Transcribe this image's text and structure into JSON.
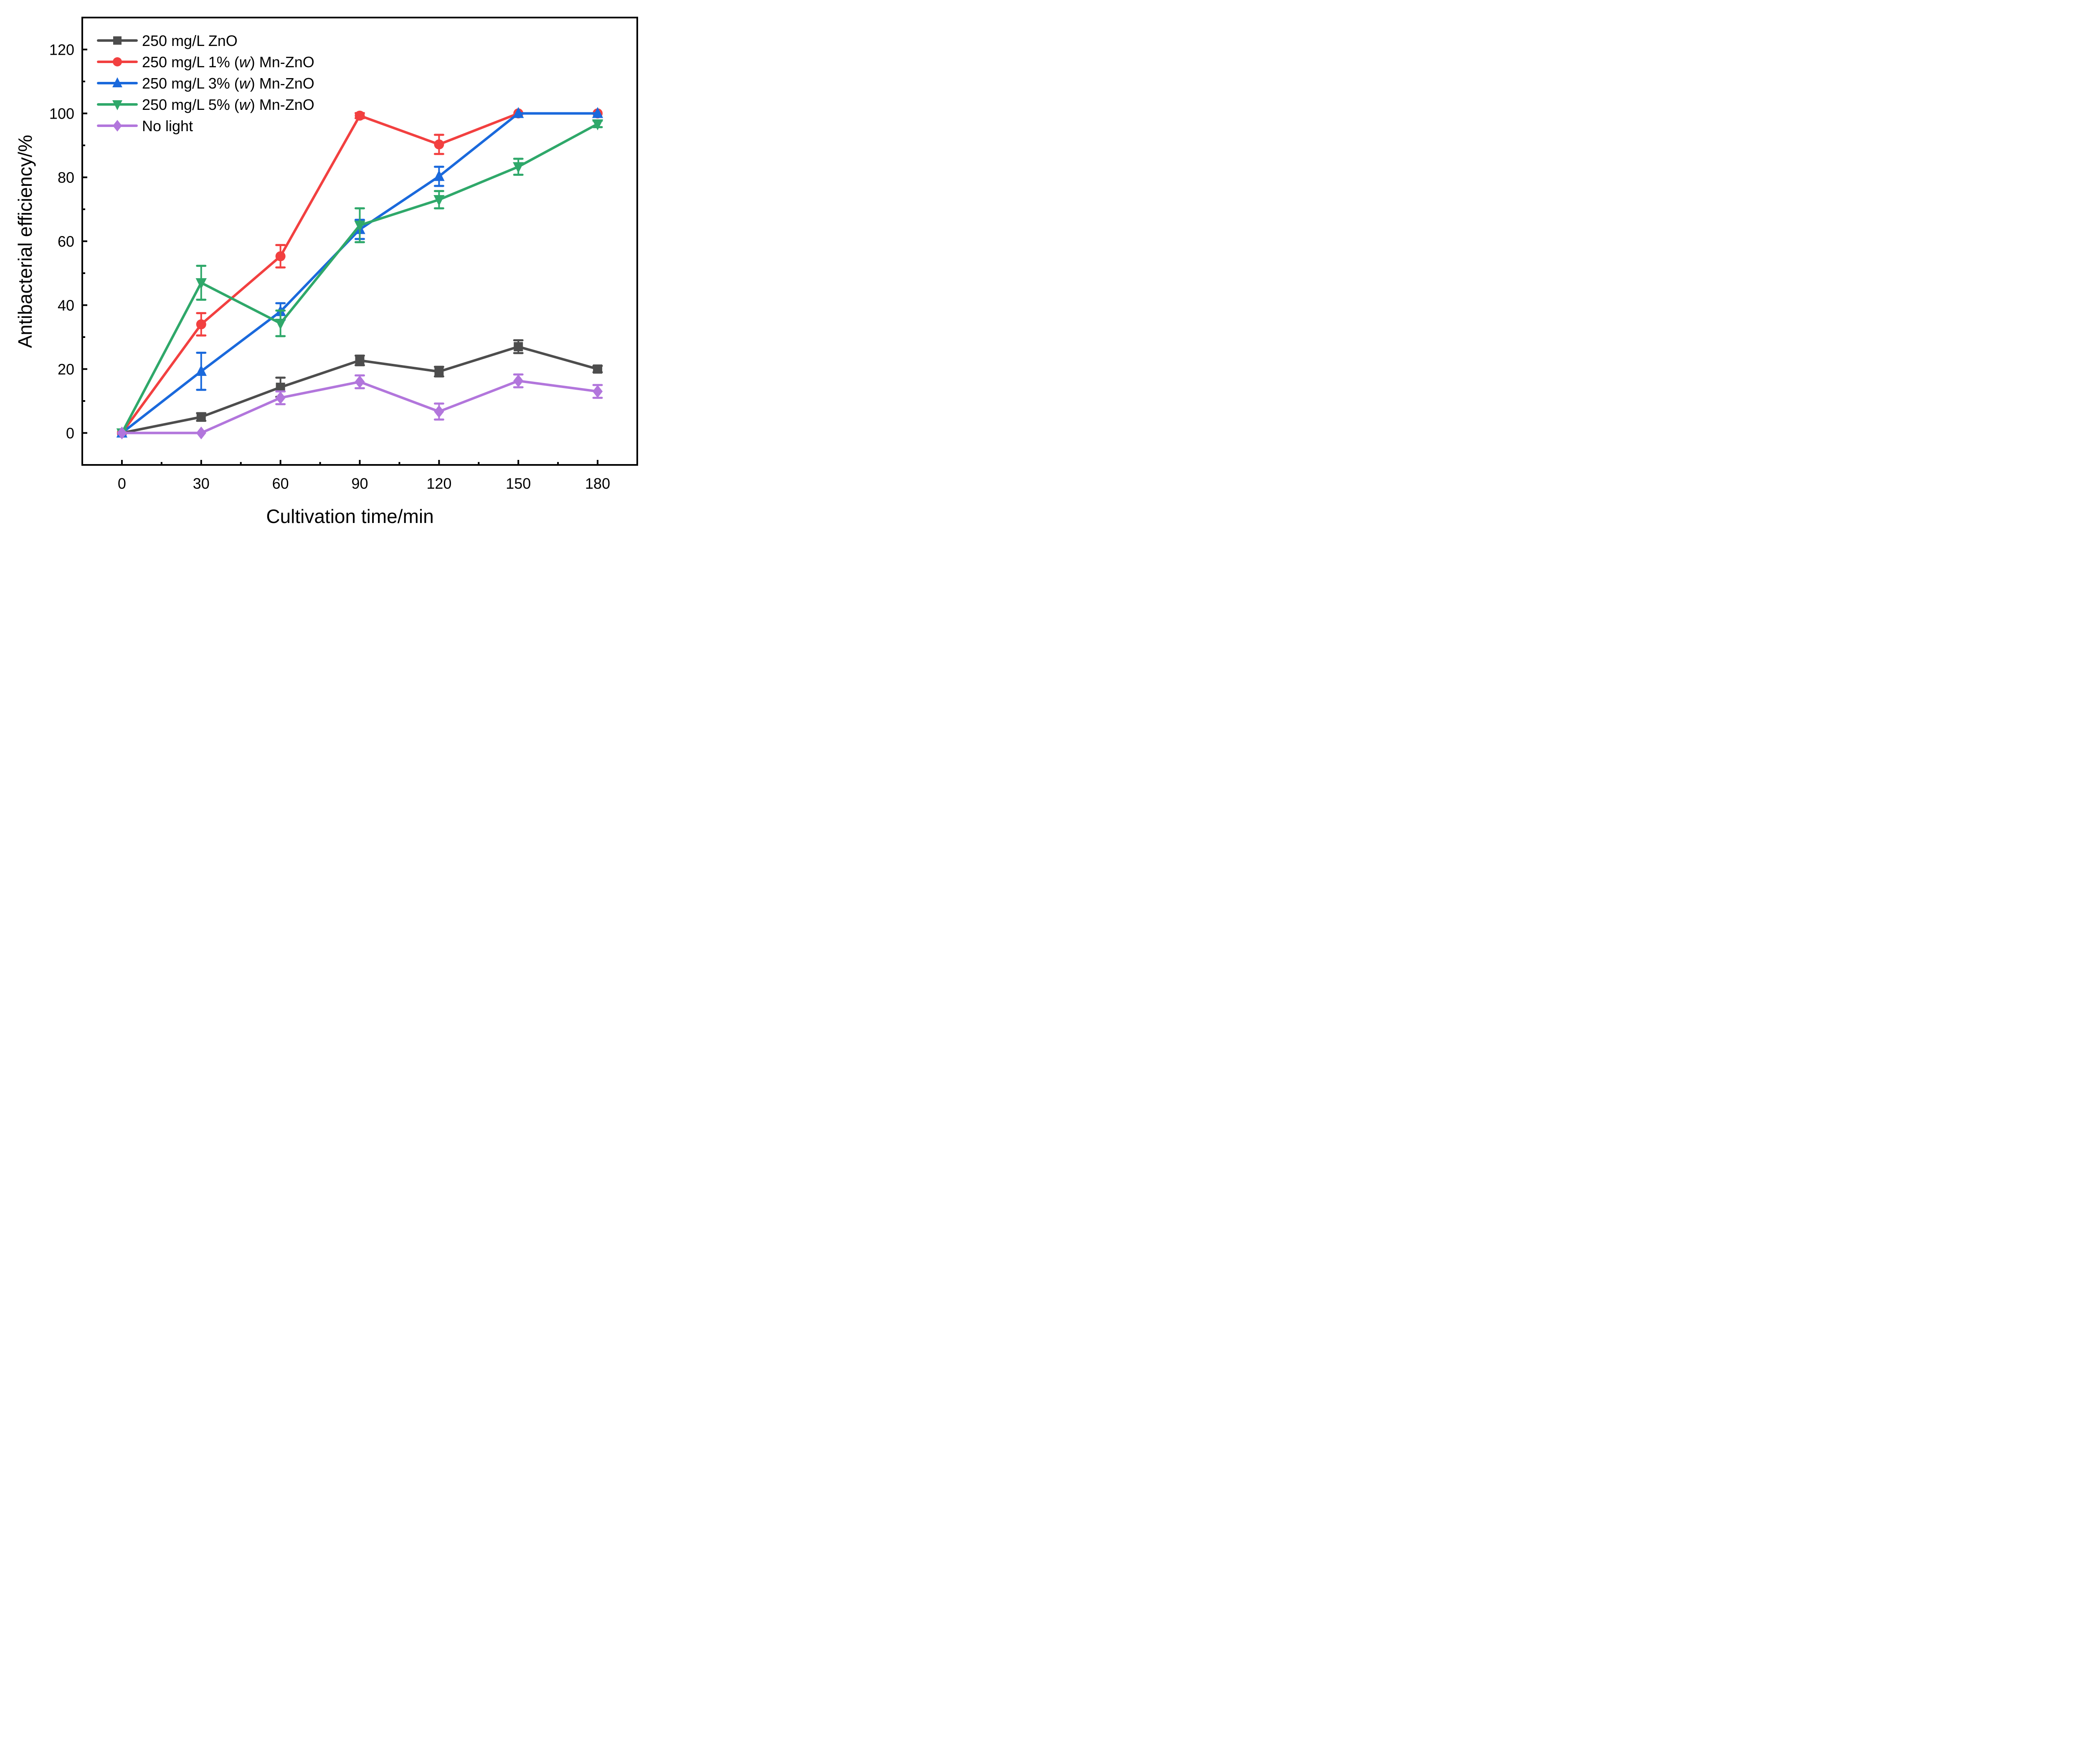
{
  "chart_data": {
    "type": "line",
    "title": "",
    "xlabel": "Cultivation time/min",
    "ylabel": "Antibacterial efficiency/%",
    "x": [
      0,
      30,
      60,
      90,
      120,
      150,
      180
    ],
    "xlim": [
      -15,
      195
    ],
    "ylim": [
      -10,
      130
    ],
    "xticks": [
      0,
      30,
      60,
      90,
      120,
      150,
      180
    ],
    "xtick_labels": [
      "0",
      "30",
      "60",
      "90",
      "120",
      "150",
      "180"
    ],
    "yticks": [
      0,
      20,
      40,
      60,
      80,
      100,
      120
    ],
    "ytick_labels": [
      "0",
      "20",
      "40",
      "60",
      "80",
      "100",
      "120"
    ],
    "grid": false,
    "legend_position": "top-left",
    "series": [
      {
        "name": "250 mg/L  ZnO",
        "label_prefix": "250 mg/L  ZnO",
        "label_italic": "",
        "label_suffix": "",
        "marker": "square",
        "color": "#4d4d4d",
        "values": [
          0,
          5,
          14.3,
          22.7,
          19.2,
          27,
          20
        ],
        "errors": [
          0,
          1.2,
          3,
          1.5,
          1.5,
          2,
          1
        ]
      },
      {
        "name": "250 mg/L  1% (w) Mn-ZnO",
        "label_prefix": "250 mg/L  1% (",
        "label_italic": "w",
        "label_suffix": ") Mn-ZnO",
        "marker": "circle",
        "color": "#f24040",
        "values": [
          0,
          34,
          55.3,
          99.3,
          90.3,
          100,
          100
        ],
        "errors": [
          0,
          3.5,
          3.5,
          0.8,
          3,
          0,
          0
        ]
      },
      {
        "name": "250 mg/L  3% (w) Mn-ZnO",
        "label_prefix": "250 mg/L  3% (",
        "label_italic": "w",
        "label_suffix": ") Mn-ZnO",
        "marker": "triangle-up",
        "color": "#1a69dc",
        "values": [
          0,
          19.3,
          38,
          63.7,
          80.3,
          100,
          100
        ],
        "errors": [
          0,
          5.8,
          2.6,
          3,
          3,
          0,
          0
        ]
      },
      {
        "name": "250 mg/L  5% (w) Mn-ZnO",
        "label_prefix": "250 mg/L  5% (",
        "label_italic": "w",
        "label_suffix": ") Mn-ZnO",
        "marker": "triangle-down",
        "color": "#2fa86a",
        "values": [
          0,
          47,
          34.3,
          65,
          73,
          83.3,
          96.7
        ],
        "errors": [
          0,
          5.3,
          4,
          5.3,
          2.7,
          2.5,
          1
        ]
      },
      {
        "name": "No light",
        "label_prefix": "No light",
        "label_italic": "",
        "label_suffix": "",
        "marker": "diamond",
        "color": "#b276dc",
        "values": [
          0,
          0,
          11,
          16,
          6.7,
          16.3,
          13
        ],
        "errors": [
          0,
          0,
          2,
          2,
          2.5,
          2,
          2
        ]
      }
    ]
  }
}
